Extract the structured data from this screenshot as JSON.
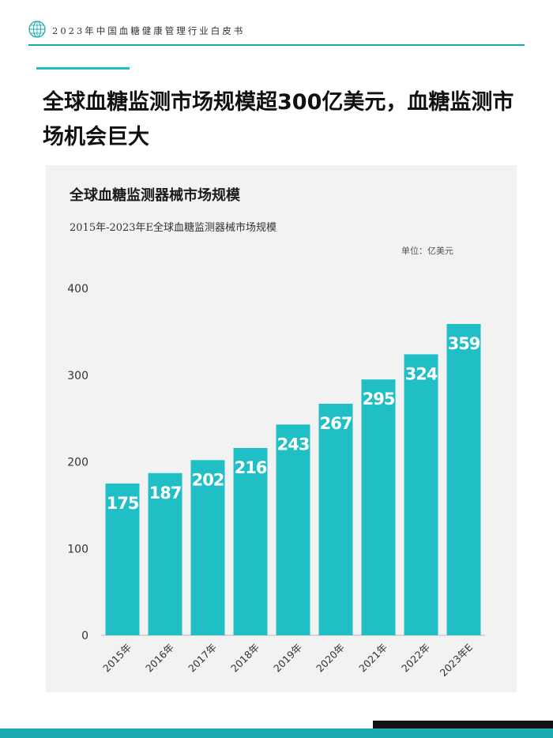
{
  "header": {
    "title": "2023年中国血糖健康管理行业白皮书",
    "logo_icon": "globe-logo-icon",
    "accent_color": "#1aa9b0"
  },
  "headline": "全球血糖监测市场规模超300亿美元，血糖监测市场机会巨大",
  "chart_data": {
    "type": "bar",
    "title": "全球血糖监测器械市场规模",
    "subtitle": "2015年-2023年E全球血糖监测器械市场规模",
    "unit": "单位：亿美元",
    "categories": [
      "2015年",
      "2016年",
      "2017年",
      "2018年",
      "2019年",
      "2020年",
      "2021年",
      "2022年",
      "2023年E"
    ],
    "values": [
      175,
      187,
      202,
      216,
      243,
      267,
      295,
      324,
      359
    ],
    "ylim": [
      0,
      400
    ],
    "yticks": [
      0,
      100,
      200,
      300,
      400
    ],
    "grid": false,
    "bar_color": "#1fbfc5"
  }
}
